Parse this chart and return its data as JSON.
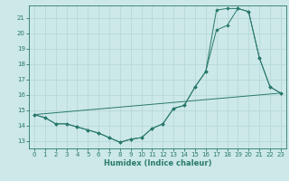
{
  "title": "",
  "xlabel": "Humidex (Indice chaleur)",
  "ylabel": "",
  "background_color": "#cce8e8",
  "grid_color": "#b8d8d8",
  "line_color": "#2a7a6a",
  "xlim": [
    -0.5,
    23.5
  ],
  "ylim": [
    12.5,
    21.8
  ],
  "yticks": [
    13,
    14,
    15,
    16,
    17,
    18,
    19,
    20,
    21
  ],
  "xticks": [
    0,
    1,
    2,
    3,
    4,
    5,
    6,
    7,
    8,
    9,
    10,
    11,
    12,
    13,
    14,
    15,
    16,
    17,
    18,
    19,
    20,
    21,
    22,
    23
  ],
  "series_main": {
    "x": [
      0,
      1,
      2,
      3,
      4,
      5,
      6,
      7,
      8,
      9,
      10,
      11,
      12,
      13,
      14,
      15,
      16,
      17,
      18,
      19,
      20,
      21,
      22,
      23
    ],
    "y": [
      14.7,
      14.5,
      14.1,
      14.1,
      13.9,
      13.7,
      13.5,
      13.2,
      12.9,
      13.1,
      13.2,
      13.8,
      14.1,
      15.1,
      15.3,
      16.5,
      17.5,
      20.2,
      20.5,
      21.6,
      21.4,
      18.4,
      16.5,
      16.1
    ]
  },
  "series_upper": {
    "x": [
      0,
      1,
      2,
      3,
      4,
      5,
      6,
      7,
      8,
      9,
      10,
      11,
      12,
      13,
      14,
      15,
      16,
      17,
      18,
      19,
      20,
      21,
      22,
      23
    ],
    "y": [
      14.7,
      14.5,
      14.1,
      14.1,
      13.9,
      13.7,
      13.5,
      13.2,
      12.9,
      13.1,
      13.2,
      13.8,
      14.1,
      15.1,
      15.3,
      16.5,
      17.5,
      21.5,
      21.6,
      21.6,
      21.4,
      18.4,
      16.5,
      16.1
    ]
  },
  "series_straight": {
    "x": [
      0,
      23
    ],
    "y": [
      14.7,
      16.1
    ]
  },
  "xlabel_fontsize": 6.0,
  "tick_fontsize": 5.0
}
